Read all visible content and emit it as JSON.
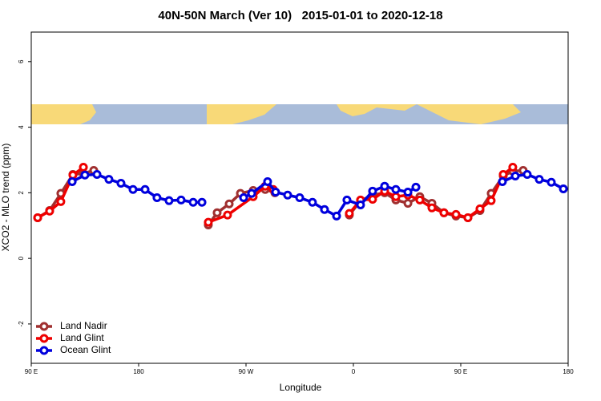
{
  "chart_data": {
    "type": "line",
    "title": "40N-50N March (Ver 10)   2015-01-01 to 2020-12-18",
    "x_label": "Longitude",
    "y_label": "XCO2 - MLO trend (ppm)",
    "xlim": [
      90,
      540
    ],
    "ylim": [
      -3.2,
      6.9
    ],
    "xticks": [
      {
        "value": 90,
        "label": "90 E"
      },
      180,
      {
        "value": 270,
        "label": "90 W"
      },
      {
        "value": 360,
        "label": "0"
      },
      {
        "value": 450,
        "label": "90 E"
      },
      {
        "value": 540,
        "label": "180"
      }
    ],
    "yticks": [
      -2,
      0,
      2,
      4,
      6
    ],
    "legend": "bottom-left",
    "series": [
      {
        "name": "Land Nadir",
        "color": "#a03030",
        "x": [
          95.4,
          105.4,
          114.8,
          124.9,
          133.7,
          142.4,
          null,
          238.4,
          245.8,
          255.9,
          265.3,
          276,
          286.1,
          294.2,
          null,
          356.6,
          366,
          376.1,
          386.2,
          395.6,
          405.7,
          415.7,
          425.8,
          435.9,
          446,
          456,
          466.1,
          475.5,
          485.6,
          493.6,
          502.3
        ],
        "values": [
          1.24,
          1.46,
          1.98,
          2.56,
          2.59,
          2.68,
          null,
          1.02,
          1.39,
          1.66,
          1.98,
          2.07,
          2.1,
          2.0,
          null,
          1.32,
          1.76,
          1.93,
          2.0,
          1.78,
          1.68,
          1.88,
          1.68,
          1.39,
          1.29,
          1.24,
          1.46,
          1.98,
          2.51,
          2.66,
          2.68
        ]
      },
      {
        "name": "Land Glint",
        "color": "#ee0000",
        "x": [
          95.4,
          105.4,
          114.8,
          124.9,
          133.7,
          null,
          238.4,
          254.5,
          276,
          286.1,
          292.8,
          null,
          356.6,
          366,
          376.1,
          386.2,
          395.6,
          405.7,
          415.7,
          425.8,
          435.9,
          446,
          456,
          466.1,
          475.5,
          485.6,
          493.6
        ],
        "values": [
          1.24,
          1.44,
          1.73,
          2.54,
          2.78,
          null,
          1.1,
          1.32,
          1.88,
          2.2,
          2.1,
          null,
          1.37,
          1.78,
          1.8,
          2.05,
          1.88,
          1.93,
          1.78,
          1.54,
          1.39,
          1.34,
          1.24,
          1.51,
          1.76,
          2.56,
          2.78
        ]
      },
      {
        "name": "Ocean Glint",
        "color": "#0000dd",
        "x": [
          124.3,
          135,
          145.1,
          155.1,
          165.2,
          175.3,
          185.4,
          195.4,
          205.5,
          215.6,
          225.7,
          233.1,
          null,
          268,
          274.7,
          288.1,
          294.8,
          304.9,
          315,
          325.7,
          335.8,
          345.9,
          354.6,
          366,
          376.1,
          386.2,
          395.6,
          405.7,
          412.4,
          null,
          484.9,
          495.7,
          505.7,
          515.8,
          525.9,
          536
        ],
        "values": [
          2.34,
          2.54,
          2.56,
          2.41,
          2.29,
          2.1,
          2.1,
          1.85,
          1.76,
          1.78,
          1.71,
          1.71,
          null,
          1.85,
          1.98,
          2.34,
          2.02,
          1.93,
          1.85,
          1.71,
          1.49,
          1.29,
          1.78,
          1.63,
          2.05,
          2.2,
          2.1,
          2.02,
          2.17,
          null,
          2.34,
          2.51,
          2.56,
          2.41,
          2.32,
          2.12
        ]
      }
    ]
  }
}
